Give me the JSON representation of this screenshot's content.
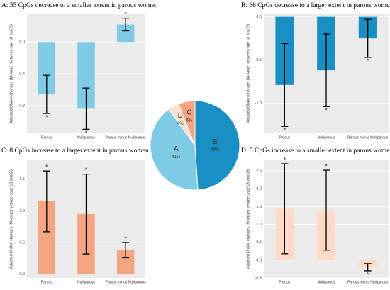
{
  "chart_data": [
    {
      "type": "bar",
      "title": "A: 55 CpGs decrease to a smaller extent in parous women",
      "ylabel": "Adjusted DNAm changes (M-value) between age 18 and 26",
      "categories": [
        "Parous",
        "Nulliparous",
        "Parous minus Nulliparous"
      ],
      "values": [
        -0.66,
        -0.84,
        0.22
      ],
      "errors": [
        0.24,
        0.26,
        0.08
      ],
      "sig_labels": [
        "*",
        "*",
        "*"
      ],
      "color": "#7ecbe6",
      "ylim": [
        -1.15,
        0.35
      ],
      "yticks": [
        -0.8,
        -0.4,
        {
          "value": 0,
          "label": "0.0"
        }
      ],
      "grid": true
    },
    {
      "type": "bar",
      "title": "B: 66 CpGs decrease to a larger extent in parous women",
      "ylabel": "Adjusted DNAm changes (M-value) between age 18 and 26",
      "categories": [
        "Parous",
        "Nulliparous",
        "Parous minus Nulliparous"
      ],
      "values": [
        -0.79,
        -0.62,
        -0.25
      ],
      "errors": [
        0.48,
        0.42,
        0.22
      ],
      "sig_labels": [
        "*",
        "*",
        "*"
      ],
      "color": "#1a8fc4",
      "ylim": [
        -1.35,
        0.03
      ],
      "yticks": [
        {
          "value": -1,
          "label": "-1.0"
        },
        -0.5,
        {
          "value": 0,
          "label": "0.0"
        }
      ],
      "grid": true
    },
    {
      "type": "bar",
      "title": "C: 8 CpGs increase to a larger extent in parous women",
      "ylabel": "Adjusted DNAm changes (M-value) between age 18 and 26",
      "categories": [
        "Parous",
        "Nulliparous",
        "Parous minus Nulliparous"
      ],
      "values": [
        1.15,
        0.95,
        0.38
      ],
      "errors": [
        0.48,
        0.63,
        0.12
      ],
      "sig_labels": [
        "*",
        "*",
        "*"
      ],
      "color": "#f4a582",
      "ylim": [
        -0.06,
        1.8
      ],
      "yticks": [
        {
          "value": 0,
          "label": "0.0"
        },
        0.5,
        {
          "value": 1,
          "label": "1.0"
        },
        1.5
      ],
      "grid": true
    },
    {
      "type": "bar",
      "title": "D: 5 CpGs increase to a smaller extent in parous women",
      "ylabel": "Adjusted DNAm changes (M-value) between age 18 and 26",
      "categories": [
        "Parous",
        "Nulliparous",
        "Parous minus Nulliparous"
      ],
      "values": [
        1.44,
        1.4,
        -0.2
      ],
      "errors": [
        1.26,
        1.12,
        0.1
      ],
      "sig_labels": [
        "*",
        "*",
        "*"
      ],
      "color": "#fddbc7",
      "ylim": [
        -0.5,
        2.8
      ],
      "yticks": [
        -0.5,
        {
          "value": 0,
          "label": "0.0"
        },
        0.5,
        {
          "value": 1,
          "label": "1.0"
        },
        1.5,
        {
          "value": 2,
          "label": "2.0"
        },
        2.5
      ],
      "grid": true
    },
    {
      "type": "pie",
      "categories": [
        "B",
        "A",
        "D",
        "C"
      ],
      "values": [
        49,
        41,
        4,
        6
      ],
      "value_labels": [
        "49%",
        "41%",
        "4%",
        "6%"
      ],
      "colors": [
        "#1a8fc4",
        "#7ecbe6",
        "#fde0cf",
        "#f4a582"
      ]
    }
  ]
}
